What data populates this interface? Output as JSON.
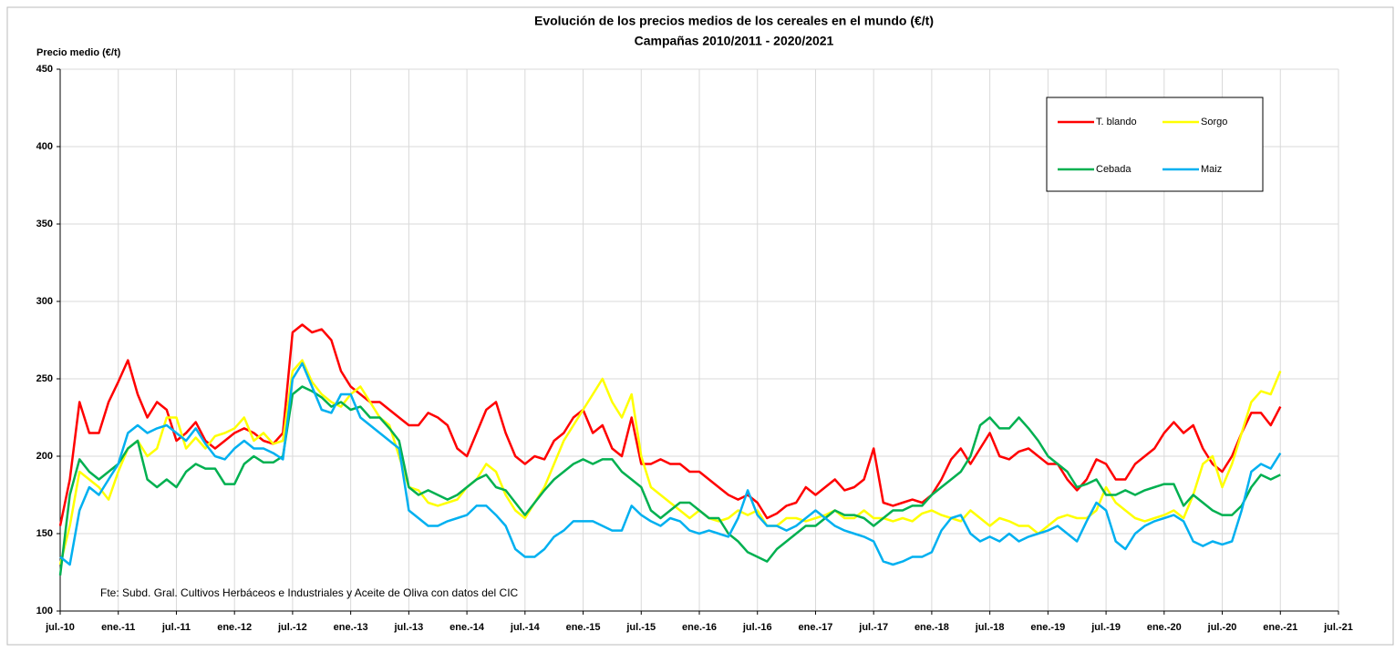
{
  "chart_data": {
    "type": "line",
    "title": "Evolución de los precios medios de los cereales en el mundo (€/t)",
    "subtitle": "Campañas 2010/2011 - 2020/2021",
    "y_label": "Precio medio (€/t)",
    "source": "Fte: Subd. Gral. Cultivos Herbáceos e Industriales y Aceite de Oliva con datos del CIC",
    "categories": [
      "jul.-10",
      null,
      null,
      null,
      null,
      null,
      "ene.-11",
      null,
      null,
      null,
      null,
      null,
      "jul.-11",
      null,
      null,
      null,
      null,
      null,
      "ene.-12",
      null,
      null,
      null,
      null,
      null,
      "jul.-12",
      null,
      null,
      null,
      null,
      null,
      "ene.-13",
      null,
      null,
      null,
      null,
      null,
      "jul.-13",
      null,
      null,
      null,
      null,
      null,
      "ene.-14",
      null,
      null,
      null,
      null,
      null,
      "jul.-14",
      null,
      null,
      null,
      null,
      null,
      "ene.-15",
      null,
      null,
      null,
      null,
      null,
      "jul.-15",
      null,
      null,
      null,
      null,
      null,
      "ene.-16",
      null,
      null,
      null,
      null,
      null,
      "jul.-16",
      null,
      null,
      null,
      null,
      null,
      "ene.-17",
      null,
      null,
      null,
      null,
      null,
      "jul.-17",
      null,
      null,
      null,
      null,
      null,
      "ene.-18",
      null,
      null,
      null,
      null,
      null,
      "jul.-18",
      null,
      null,
      null,
      null,
      null,
      "ene.-19",
      null,
      null,
      null,
      null,
      null,
      "jul.-19",
      null,
      null,
      null,
      null,
      null,
      "ene.-20",
      null,
      null,
      null,
      null,
      null,
      "jul.-20",
      null,
      null,
      null,
      null,
      null,
      "ene.-21",
      null,
      null,
      null,
      null,
      null,
      "jul.-21"
    ],
    "series": [
      {
        "name": "T. blando",
        "color": "#ff0000",
        "values": [
          155,
          185,
          235,
          215,
          215,
          235,
          248,
          262,
          240,
          225,
          235,
          230,
          210,
          215,
          222,
          210,
          205,
          210,
          215,
          218,
          215,
          210,
          208,
          215,
          280,
          285,
          280,
          282,
          275,
          255,
          245,
          240,
          235,
          235,
          230,
          225,
          220,
          220,
          228,
          225,
          220,
          205,
          200,
          215,
          230,
          235,
          215,
          200,
          195,
          200,
          198,
          210,
          215,
          225,
          230,
          215,
          220,
          205,
          200,
          225,
          195,
          195,
          198,
          195,
          195,
          190,
          190,
          185,
          180,
          175,
          172,
          175,
          170,
          160,
          163,
          168,
          170,
          180,
          175,
          180,
          185,
          178,
          180,
          185,
          205,
          170,
          168,
          170,
          172,
          170,
          175,
          185,
          198,
          205,
          195,
          205,
          215,
          200,
          198,
          203,
          205,
          200,
          195,
          195,
          185,
          178,
          185,
          198,
          195,
          185,
          185,
          195,
          200,
          205,
          215,
          222,
          215,
          220,
          205,
          195,
          190,
          200,
          215,
          228,
          228,
          220,
          232,
          null,
          null,
          null,
          null,
          null,
          null
        ]
      },
      {
        "name": "Sorgo",
        "color": "#ffff00",
        "values": [
          130,
          155,
          190,
          185,
          180,
          172,
          190,
          205,
          210,
          200,
          205,
          225,
          225,
          205,
          212,
          205,
          213,
          215,
          218,
          225,
          210,
          215,
          208,
          210,
          255,
          262,
          248,
          240,
          235,
          232,
          240,
          245,
          235,
          225,
          220,
          200,
          180,
          178,
          170,
          168,
          170,
          172,
          180,
          185,
          195,
          190,
          175,
          165,
          160,
          170,
          180,
          195,
          210,
          220,
          230,
          240,
          250,
          235,
          225,
          240,
          200,
          180,
          175,
          170,
          165,
          160,
          165,
          160,
          158,
          160,
          165,
          162,
          165,
          155,
          155,
          160,
          160,
          158,
          160,
          162,
          165,
          160,
          160,
          165,
          160,
          160,
          158,
          160,
          158,
          163,
          165,
          162,
          160,
          158,
          165,
          160,
          155,
          160,
          158,
          155,
          155,
          150,
          155,
          160,
          162,
          160,
          160,
          165,
          180,
          170,
          165,
          160,
          158,
          160,
          162,
          165,
          160,
          175,
          195,
          200,
          180,
          195,
          215,
          235,
          242,
          240,
          255,
          null,
          null,
          null,
          null,
          null,
          null
        ]
      },
      {
        "name": "Cebada",
        "color": "#00b050",
        "values": [
          123,
          175,
          198,
          190,
          185,
          190,
          195,
          205,
          210,
          185,
          180,
          185,
          180,
          190,
          195,
          192,
          192,
          182,
          182,
          195,
          200,
          196,
          196,
          200,
          240,
          245,
          242,
          238,
          232,
          235,
          230,
          232,
          225,
          225,
          218,
          210,
          180,
          175,
          178,
          175,
          172,
          175,
          180,
          185,
          188,
          180,
          178,
          170,
          162,
          170,
          178,
          185,
          190,
          195,
          198,
          195,
          198,
          198,
          190,
          185,
          180,
          165,
          160,
          165,
          170,
          170,
          165,
          160,
          160,
          150,
          145,
          138,
          135,
          132,
          140,
          145,
          150,
          155,
          155,
          160,
          165,
          162,
          162,
          160,
          155,
          160,
          165,
          165,
          168,
          168,
          175,
          180,
          185,
          190,
          200,
          220,
          225,
          218,
          218,
          225,
          218,
          210,
          200,
          195,
          190,
          180,
          182,
          185,
          175,
          175,
          178,
          175,
          178,
          180,
          182,
          182,
          168,
          175,
          170,
          165,
          162,
          162,
          168,
          180,
          188,
          185,
          188,
          null,
          null,
          null,
          null,
          null,
          null
        ]
      },
      {
        "name": "Maiz",
        "color": "#00b0f0",
        "values": [
          135,
          130,
          165,
          180,
          175,
          185,
          195,
          215,
          220,
          215,
          218,
          220,
          215,
          210,
          218,
          208,
          200,
          198,
          205,
          210,
          205,
          205,
          202,
          198,
          250,
          260,
          245,
          230,
          228,
          240,
          240,
          225,
          220,
          215,
          210,
          205,
          165,
          160,
          155,
          155,
          158,
          160,
          162,
          168,
          168,
          162,
          155,
          140,
          135,
          135,
          140,
          148,
          152,
          158,
          158,
          158,
          155,
          152,
          152,
          168,
          162,
          158,
          155,
          160,
          158,
          152,
          150,
          152,
          150,
          148,
          160,
          178,
          162,
          155,
          155,
          152,
          155,
          160,
          165,
          160,
          155,
          152,
          150,
          148,
          145,
          132,
          130,
          132,
          135,
          135,
          138,
          152,
          160,
          162,
          150,
          145,
          148,
          145,
          150,
          145,
          148,
          150,
          152,
          155,
          150,
          145,
          158,
          170,
          165,
          145,
          140,
          150,
          155,
          158,
          160,
          162,
          158,
          145,
          142,
          145,
          143,
          145,
          165,
          190,
          195,
          192,
          202,
          null,
          null,
          null,
          null,
          null,
          null
        ]
      }
    ],
    "ylim": [
      100,
      450
    ],
    "yticks": [
      100,
      150,
      200,
      250,
      300,
      350,
      400,
      450
    ],
    "grid": true
  }
}
